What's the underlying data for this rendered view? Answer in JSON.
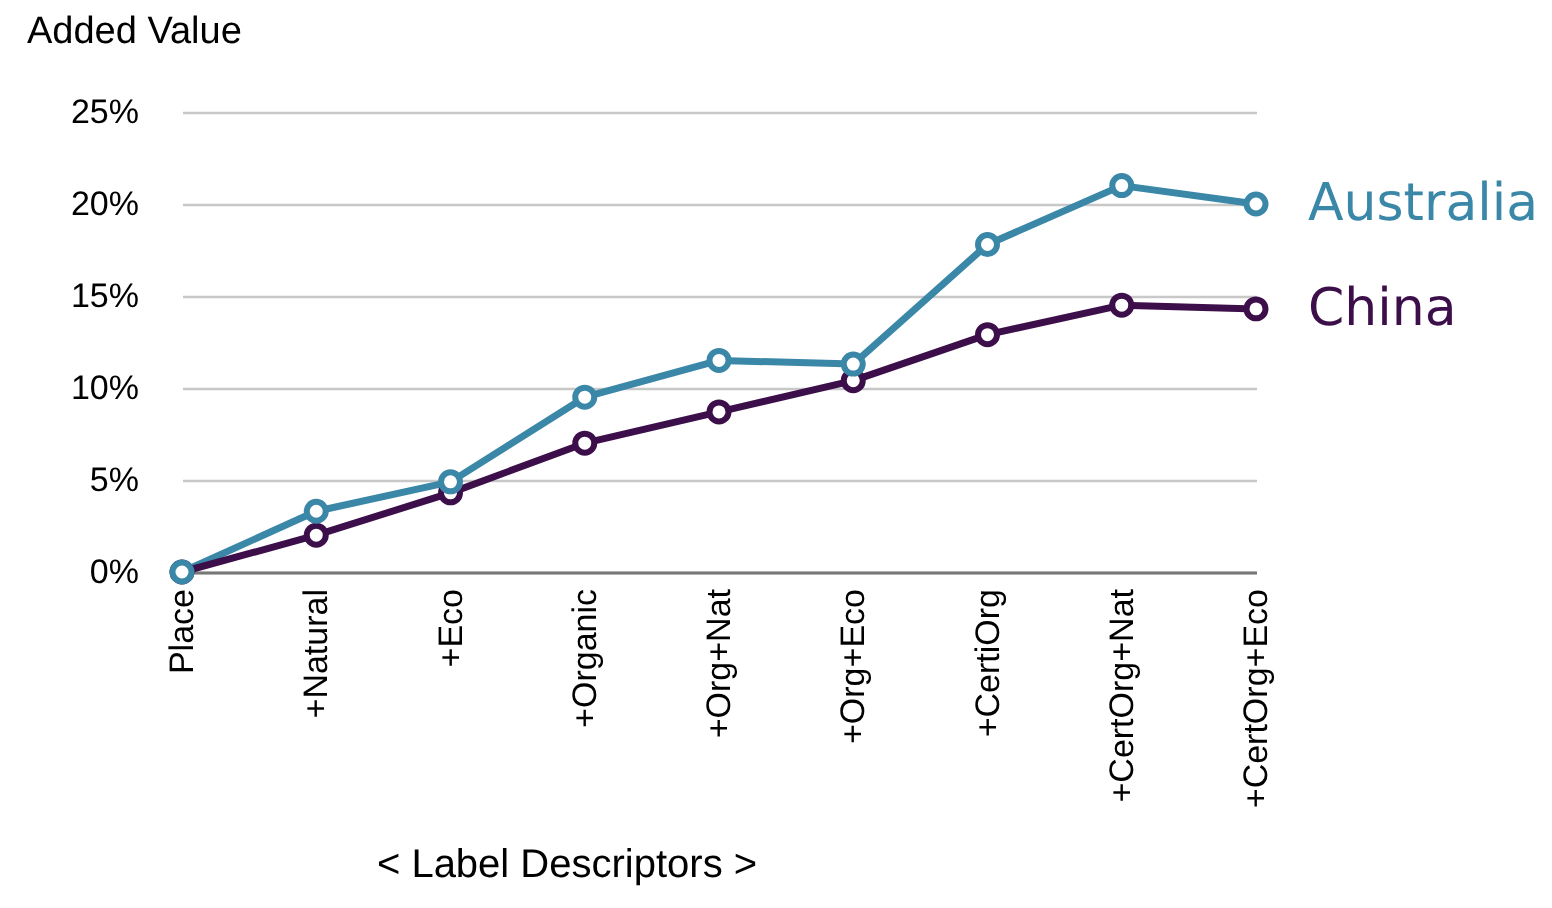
{
  "chart_data": {
    "type": "line",
    "ylabel": "Added Value",
    "xlabel": "< Label Descriptors >",
    "categories": [
      "Place",
      "+Natural",
      "+Eco",
      "+Organic",
      "+Org+Nat",
      "+Org+Eco",
      "+CertiOrg",
      "+CertOrg+Nat",
      "+CertOrg+Eco"
    ],
    "series": [
      {
        "name": "Australia",
        "color": "#3a87a8",
        "values": [
          0,
          3.3,
          4.9,
          9.5,
          11.5,
          11.3,
          17.8,
          21.0,
          20.0
        ]
      },
      {
        "name": "China",
        "color": "#3d0f4a",
        "values": [
          0,
          2.0,
          4.3,
          7.0,
          8.7,
          10.4,
          12.9,
          14.5,
          14.3
        ]
      }
    ],
    "ylim": [
      0,
      25
    ],
    "yticks": [
      {
        "value": 0,
        "label": "0%"
      },
      {
        "value": 5,
        "label": "5%"
      },
      {
        "value": 10,
        "label": "10%"
      },
      {
        "value": 15,
        "label": "15%"
      },
      {
        "value": 20,
        "label": "20%"
      },
      {
        "value": 25,
        "label": "25%"
      }
    ],
    "grid": "y",
    "marker": "circle",
    "line_style": "solid"
  }
}
